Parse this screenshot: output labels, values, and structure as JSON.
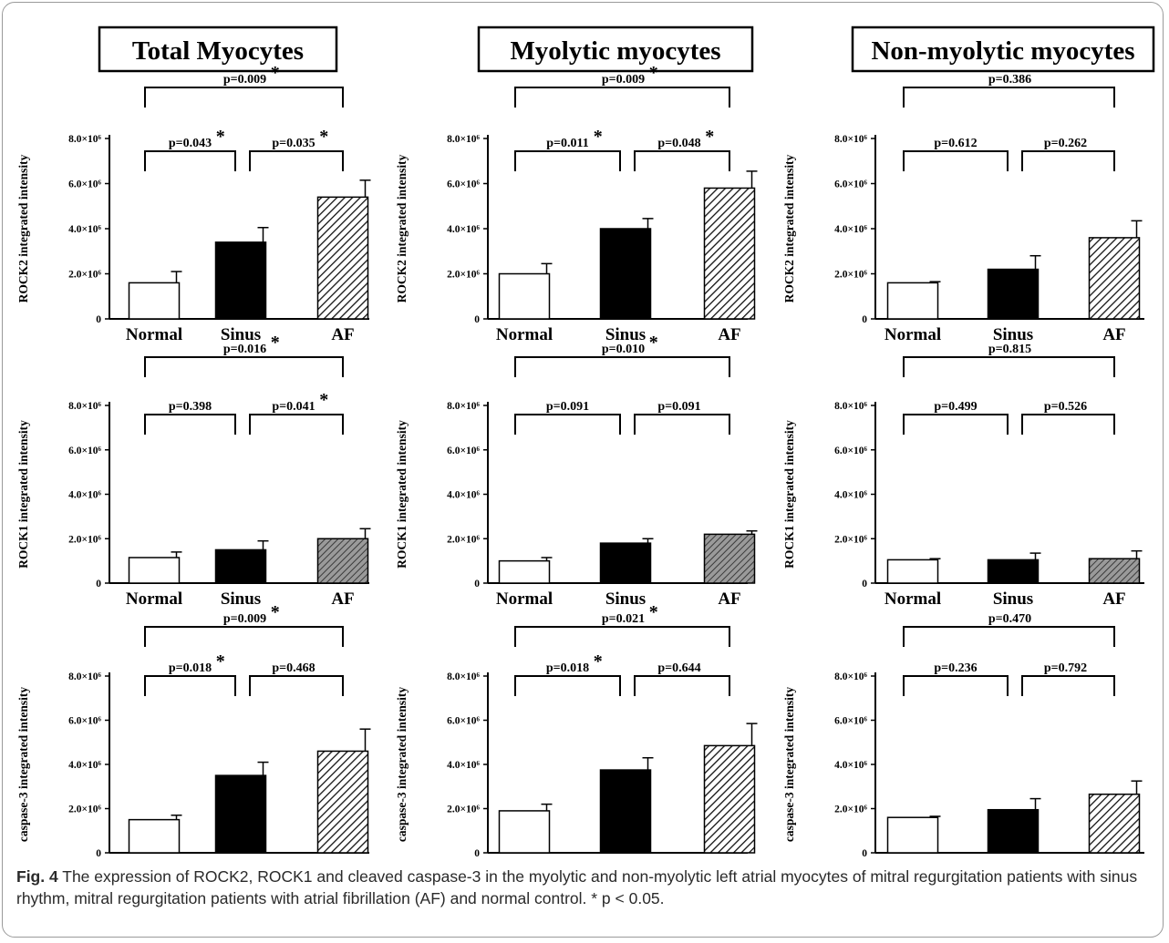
{
  "column_titles": [
    "Total Myocytes",
    "Myolytic myocytes",
    "Non-myolytic myocytes"
  ],
  "row_ylabels": [
    "ROCK2 integrated intensity",
    "ROCK1 integrated intensity",
    "caspase-3 integrated intensity"
  ],
  "categories": [
    "Normal",
    "Sinus",
    "AF"
  ],
  "ytick_labels": [
    "0",
    "2.0×10⁶",
    "4.0×10⁶",
    "6.0×10⁶",
    "8.0×10⁶"
  ],
  "caption": {
    "label": "Fig. 4",
    "text": " The expression of ROCK2, ROCK1 and cleaved caspase-3 in the myolytic and non-myolytic left atrial myocytes of mitral regurgitation patients with sinus rhythm, mitral regurgitation patients with atrial fibrillation (AF) and normal control. * p < 0.05."
  },
  "colors": {
    "normal": "#ffffff",
    "sinus": "#000000",
    "af": "hatch"
  },
  "chart_data": [
    {
      "type": "bar",
      "column": "Total Myocytes",
      "ylabel": "ROCK2 integrated intensity",
      "categories": [
        "Normal",
        "Sinus",
        "AF"
      ],
      "values": [
        1600000.0,
        3400000.0,
        5400000.0
      ],
      "errors": [
        500000.0,
        650000.0,
        750000.0
      ],
      "ylim": [
        0,
        8000000.0
      ],
      "brackets": [
        {
          "pair": "Normal-Sinus",
          "label": "p=0.043",
          "sig": true
        },
        {
          "pair": "Sinus-AF",
          "label": "p=0.035",
          "sig": true
        },
        {
          "pair": "Normal-AF",
          "label": "p=0.009",
          "sig": true
        }
      ]
    },
    {
      "type": "bar",
      "column": "Myolytic myocytes",
      "ylabel": "ROCK2 integrated intensity",
      "categories": [
        "Normal",
        "Sinus",
        "AF"
      ],
      "values": [
        2000000.0,
        4000000.0,
        5800000.0
      ],
      "errors": [
        450000.0,
        450000.0,
        750000.0
      ],
      "ylim": [
        0,
        8000000.0
      ],
      "brackets": [
        {
          "pair": "Normal-Sinus",
          "label": "p=0.011",
          "sig": true
        },
        {
          "pair": "Sinus-AF",
          "label": "p=0.048",
          "sig": true
        },
        {
          "pair": "Normal-AF",
          "label": "p=0.009",
          "sig": true
        }
      ]
    },
    {
      "type": "bar",
      "column": "Non-myolytic myocytes",
      "ylabel": "ROCK2 integrated intensity",
      "categories": [
        "Normal",
        "Sinus",
        "AF"
      ],
      "values": [
        1600000.0,
        2200000.0,
        3600000.0
      ],
      "errors": [
        50000.0,
        600000.0,
        750000.0
      ],
      "ylim": [
        0,
        8000000.0
      ],
      "brackets": [
        {
          "pair": "Normal-Sinus",
          "label": "p=0.612",
          "sig": false
        },
        {
          "pair": "Sinus-AF",
          "label": "p=0.262",
          "sig": false
        },
        {
          "pair": "Normal-AF",
          "label": "p=0.386",
          "sig": false
        }
      ]
    },
    {
      "type": "bar",
      "column": "Total Myocytes",
      "ylabel": "ROCK1 integrated intensity",
      "categories": [
        "Normal",
        "Sinus",
        "AF"
      ],
      "values": [
        1150000.0,
        1500000.0,
        2000000.0
      ],
      "errors": [
        250000.0,
        400000.0,
        450000.0
      ],
      "ylim": [
        0,
        8000000.0
      ],
      "brackets": [
        {
          "pair": "Normal-Sinus",
          "label": "p=0.398",
          "sig": false
        },
        {
          "pair": "Sinus-AF",
          "label": "p=0.041",
          "sig": true
        },
        {
          "pair": "Normal-AF",
          "label": "p=0.016",
          "sig": true
        }
      ]
    },
    {
      "type": "bar",
      "column": "Myolytic myocytes",
      "ylabel": "ROCK1 integrated intensity",
      "categories": [
        "Normal",
        "Sinus",
        "AF"
      ],
      "values": [
        1000000.0,
        1800000.0,
        2200000.0
      ],
      "errors": [
        150000.0,
        200000.0,
        150000.0
      ],
      "ylim": [
        0,
        8000000.0
      ],
      "brackets": [
        {
          "pair": "Normal-Sinus",
          "label": "p=0.091",
          "sig": false
        },
        {
          "pair": "Sinus-AF",
          "label": "p=0.091",
          "sig": false
        },
        {
          "pair": "Normal-AF",
          "label": "p=0.010",
          "sig": true
        }
      ]
    },
    {
      "type": "bar",
      "column": "Non-myolytic myocytes",
      "ylabel": "ROCK1 integrated intensity",
      "categories": [
        "Normal",
        "Sinus",
        "AF"
      ],
      "values": [
        1050000.0,
        1050000.0,
        1100000.0
      ],
      "errors": [
        50000.0,
        300000.0,
        350000.0
      ],
      "ylim": [
        0,
        8000000.0
      ],
      "brackets": [
        {
          "pair": "Normal-Sinus",
          "label": "p=0.499",
          "sig": false
        },
        {
          "pair": "Sinus-AF",
          "label": "p=0.526",
          "sig": false
        },
        {
          "pair": "Normal-AF",
          "label": "p=0.815",
          "sig": false
        }
      ]
    },
    {
      "type": "bar",
      "column": "Total Myocytes",
      "ylabel": "caspase-3 integrated intensity",
      "categories": [
        "Normal",
        "Sinus",
        "AF"
      ],
      "values": [
        1500000.0,
        3500000.0,
        4600000.0
      ],
      "errors": [
        200000.0,
        600000.0,
        1000000.0
      ],
      "ylim": [
        0,
        8000000.0
      ],
      "brackets": [
        {
          "pair": "Normal-Sinus",
          "label": "p=0.018",
          "sig": true
        },
        {
          "pair": "Sinus-AF",
          "label": "p=0.468",
          "sig": false
        },
        {
          "pair": "Normal-AF",
          "label": "p=0.009",
          "sig": true
        }
      ]
    },
    {
      "type": "bar",
      "column": "Myolytic myocytes",
      "ylabel": "caspase-3 integrated intensity",
      "categories": [
        "Normal",
        "Sinus",
        "AF"
      ],
      "values": [
        1900000.0,
        3750000.0,
        4850000.0
      ],
      "errors": [
        300000.0,
        550000.0,
        1000000.0
      ],
      "ylim": [
        0,
        8000000.0
      ],
      "brackets": [
        {
          "pair": "Normal-Sinus",
          "label": "p=0.018",
          "sig": true
        },
        {
          "pair": "Sinus-AF",
          "label": "p=0.644",
          "sig": false
        },
        {
          "pair": "Normal-AF",
          "label": "p=0.021",
          "sig": true
        }
      ]
    },
    {
      "type": "bar",
      "column": "Non-myolytic myocytes",
      "ylabel": "caspase-3 integrated intensity",
      "categories": [
        "Normal",
        "Sinus",
        "AF"
      ],
      "values": [
        1600000.0,
        1950000.0,
        2650000.0
      ],
      "errors": [
        50000.0,
        500000.0,
        600000.0
      ],
      "ylim": [
        0,
        8000000.0
      ],
      "brackets": [
        {
          "pair": "Normal-Sinus",
          "label": "p=0.236",
          "sig": false
        },
        {
          "pair": "Sinus-AF",
          "label": "p=0.792",
          "sig": false
        },
        {
          "pair": "Normal-AF",
          "label": "p=0.470",
          "sig": false
        }
      ]
    }
  ]
}
